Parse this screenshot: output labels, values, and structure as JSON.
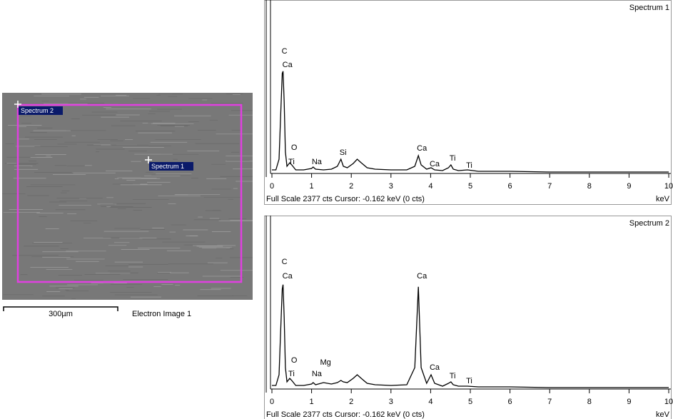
{
  "image": {
    "markers": [
      "Spectrum 2",
      "Spectrum 1"
    ],
    "scale_bar": "300µm",
    "caption": "Electron Image 1"
  },
  "chart_data": [
    {
      "type": "line",
      "title": "Spectrum 1",
      "footer": "Full Scale 2377 cts  Cursor: -0.162 keV (0 cts)",
      "x_label": "keV",
      "color": "#000000",
      "xlim": [
        0,
        10
      ],
      "xticks": [
        0,
        1,
        2,
        3,
        4,
        5,
        6,
        7,
        8,
        9,
        10
      ],
      "ylim": [
        0,
        2377
      ],
      "x": [
        0,
        0.1,
        0.18,
        0.22,
        0.26,
        0.28,
        0.31,
        0.34,
        0.38,
        0.45,
        0.5,
        0.6,
        0.8,
        1.0,
        1.04,
        1.1,
        1.3,
        1.5,
        1.65,
        1.74,
        1.8,
        1.9,
        2.05,
        2.15,
        2.25,
        2.4,
        2.6,
        3.0,
        3.4,
        3.6,
        3.69,
        3.76,
        3.9,
        4.01,
        4.1,
        4.3,
        4.45,
        4.51,
        4.57,
        4.7,
        4.93,
        5.2,
        6,
        7,
        8,
        9,
        10
      ],
      "values": [
        50,
        50,
        200,
        800,
        1400,
        1430,
        1000,
        300,
        100,
        150,
        120,
        50,
        50,
        70,
        90,
        60,
        50,
        60,
        100,
        200,
        100,
        80,
        140,
        200,
        150,
        80,
        60,
        50,
        50,
        100,
        250,
        120,
        60,
        80,
        50,
        40,
        80,
        120,
        60,
        40,
        50,
        30,
        30,
        20,
        20,
        20,
        20
      ],
      "annotations": [
        {
          "text": "C",
          "x": 0.28
        },
        {
          "text": "Ca",
          "x": 0.3
        },
        {
          "text": "O",
          "x": 0.52
        },
        {
          "text": "Ti",
          "x": 0.45
        },
        {
          "text": "Na",
          "x": 1.04
        },
        {
          "text": "Si",
          "x": 1.74
        },
        {
          "text": "Ca",
          "x": 3.69
        },
        {
          "text": "Ca",
          "x": 4.01
        },
        {
          "text": "Ti",
          "x": 4.51
        },
        {
          "text": "Ti",
          "x": 4.93
        }
      ]
    },
    {
      "type": "line",
      "title": "Spectrum 2",
      "footer": "Full Scale 2377 cts  Cursor: -0.162 keV (0 cts)",
      "x_label": "keV",
      "color": "#000000",
      "xlim": [
        0,
        10
      ],
      "xticks": [
        0,
        1,
        2,
        3,
        4,
        5,
        6,
        7,
        8,
        9,
        10
      ],
      "ylim": [
        0,
        2377
      ],
      "x": [
        0,
        0.1,
        0.18,
        0.22,
        0.26,
        0.28,
        0.31,
        0.34,
        0.38,
        0.45,
        0.5,
        0.6,
        0.8,
        1.0,
        1.04,
        1.1,
        1.3,
        1.5,
        1.65,
        1.74,
        1.8,
        1.9,
        2.05,
        2.15,
        2.25,
        2.4,
        2.6,
        3.0,
        3.4,
        3.6,
        3.69,
        3.76,
        3.9,
        4.01,
        4.1,
        4.3,
        4.45,
        4.51,
        4.57,
        4.7,
        4.93,
        5.2,
        6,
        7,
        8,
        9,
        10
      ],
      "values": [
        50,
        50,
        200,
        800,
        1400,
        1460,
        1000,
        300,
        100,
        150,
        120,
        50,
        50,
        70,
        90,
        60,
        90,
        70,
        90,
        120,
        100,
        90,
        150,
        200,
        150,
        80,
        60,
        50,
        60,
        300,
        1430,
        300,
        80,
        200,
        80,
        40,
        80,
        100,
        60,
        40,
        40,
        30,
        30,
        20,
        20,
        20,
        20
      ],
      "annotations": [
        {
          "text": "C",
          "x": 0.28
        },
        {
          "text": "Ca",
          "x": 0.3
        },
        {
          "text": "O",
          "x": 0.52
        },
        {
          "text": "Ti",
          "x": 0.45
        },
        {
          "text": "Na",
          "x": 1.04
        },
        {
          "text": "Mg",
          "x": 1.25
        },
        {
          "text": "Ca",
          "x": 3.69
        },
        {
          "text": "Ca",
          "x": 4.01
        },
        {
          "text": "Ti",
          "x": 4.51
        },
        {
          "text": "Ti",
          "x": 4.93
        }
      ]
    }
  ]
}
